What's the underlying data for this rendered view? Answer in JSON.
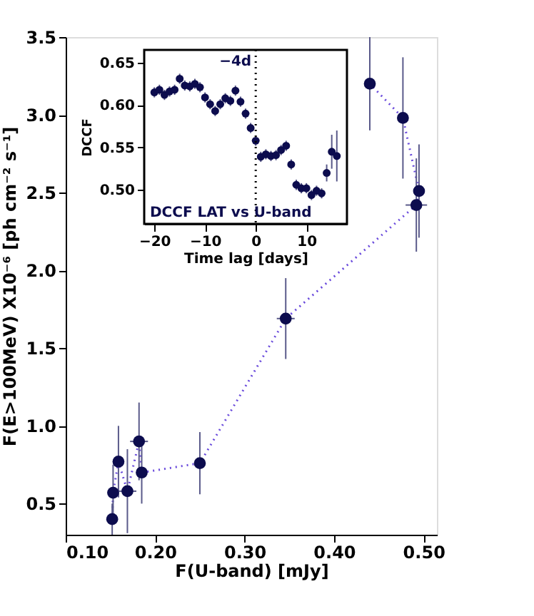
{
  "chart_data": [
    {
      "type": "line",
      "xlabel": "F(U-band) [mJy]",
      "ylabel": "F(E>100MeV) X10⁻⁶ [ph cm⁻² s⁻¹]",
      "marker": "circle",
      "line_style": "dotted",
      "xlim": [
        0.1,
        0.515
      ],
      "ylim": [
        0.3,
        3.5
      ],
      "xticks": [
        {
          "value": 0.1,
          "label": "0.10"
        },
        {
          "value": 0.2,
          "label": "0.20"
        },
        {
          "value": 0.3,
          "label": "0.30"
        },
        {
          "value": 0.4,
          "label": "0.40"
        },
        {
          "value": 0.5,
          "label": "0.50"
        }
      ],
      "yticks": [
        0.5,
        {
          "value": 1,
          "label": "1.0"
        },
        1.5,
        {
          "value": 2,
          "label": "2.0"
        },
        2.5,
        {
          "value": 3,
          "label": "3.0"
        },
        3.5
      ],
      "series": [
        {
          "color": "#0c0c4e",
          "x": [
            0.152,
            0.153,
            0.159,
            0.169,
            0.182,
            0.185,
            0.25,
            0.346,
            0.492,
            0.495,
            0.477,
            0.44
          ],
          "values": [
            0.4,
            0.57,
            0.77,
            0.58,
            0.9,
            0.7,
            0.76,
            1.69,
            2.42,
            2.51,
            2.98,
            3.2
          ],
          "errors": [
            0.1,
            0.18,
            0.23,
            0.27,
            0.25,
            0.2,
            0.2,
            0.26,
            0.3,
            0.3,
            0.39,
            0.3
          ],
          "xerrors": [
            0.006,
            0.006,
            0.006,
            0.01,
            0.01,
            0.006,
            null,
            0.01,
            0.012,
            null,
            null,
            null
          ]
        }
      ]
    },
    {
      "type": "scatter",
      "xlabel": "Time lag [days]",
      "ylabel": "DCCF",
      "xlim": [
        -22,
        18
      ],
      "ylim": [
        0.46,
        0.665
      ],
      "xticks": [
        {
          "value": -20,
          "label": "−20"
        },
        {
          "value": -10,
          "label": "−10"
        },
        0,
        10
      ],
      "yticks": [
        {
          "value": 0.5,
          "label": "0.50"
        },
        0.55,
        {
          "value": 0.6,
          "label": "0.60"
        },
        0.65
      ],
      "ref_lines": [
        {
          "axis": "x",
          "value": 0,
          "line_style": "dotted",
          "color": "#000000"
        }
      ],
      "annotations": [
        "DCCF LAT vs U-band",
        "−4d"
      ],
      "series": [
        {
          "color": "#0c0c4e",
          "x": [
            -20,
            -19,
            -18,
            -17,
            -16,
            -15,
            -14,
            -13,
            -12,
            -11,
            -10,
            -9,
            -8,
            -7,
            -6,
            -5,
            -4,
            -3,
            -2,
            -1,
            0,
            1,
            2,
            3,
            4,
            5,
            6,
            7,
            8,
            9,
            10,
            11,
            12,
            13,
            14,
            15,
            16
          ],
          "values": [
            0.615,
            0.618,
            0.612,
            0.616,
            0.618,
            0.631,
            0.623,
            0.622,
            0.625,
            0.621,
            0.609,
            0.601,
            0.593,
            0.601,
            0.608,
            0.605,
            0.617,
            0.604,
            0.59,
            0.573,
            0.558,
            0.539,
            0.542,
            0.54,
            0.541,
            0.547,
            0.552,
            0.53,
            0.506,
            0.502,
            0.502,
            0.494,
            0.499,
            0.496,
            0.52,
            0.545,
            0.54
          ],
          "errors": [
            0.006,
            0.006,
            0.006,
            0.006,
            0.006,
            0.006,
            0.006,
            0.006,
            0.006,
            0.006,
            0.006,
            0.006,
            0.006,
            0.006,
            0.006,
            0.006,
            0.006,
            0.006,
            0.006,
            0.006,
            0.006,
            0.006,
            0.006,
            0.006,
            0.006,
            0.006,
            0.006,
            0.006,
            0.006,
            0.006,
            0.006,
            0.006,
            0.006,
            0.006,
            0.01,
            0.02,
            0.03
          ]
        }
      ]
    }
  ]
}
